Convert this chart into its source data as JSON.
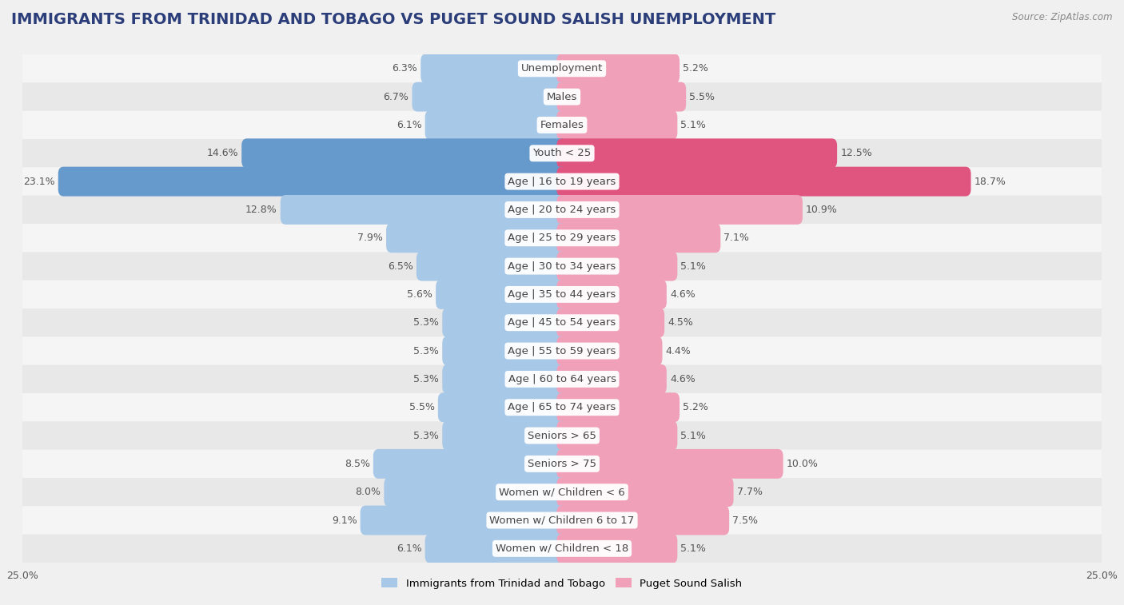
{
  "title": "IMMIGRANTS FROM TRINIDAD AND TOBAGO VS PUGET SOUND SALISH UNEMPLOYMENT",
  "source": "Source: ZipAtlas.com",
  "categories": [
    "Unemployment",
    "Males",
    "Females",
    "Youth < 25",
    "Age | 16 to 19 years",
    "Age | 20 to 24 years",
    "Age | 25 to 29 years",
    "Age | 30 to 34 years",
    "Age | 35 to 44 years",
    "Age | 45 to 54 years",
    "Age | 55 to 59 years",
    "Age | 60 to 64 years",
    "Age | 65 to 74 years",
    "Seniors > 65",
    "Seniors > 75",
    "Women w/ Children < 6",
    "Women w/ Children 6 to 17",
    "Women w/ Children < 18"
  ],
  "left_values": [
    6.3,
    6.7,
    6.1,
    14.6,
    23.1,
    12.8,
    7.9,
    6.5,
    5.6,
    5.3,
    5.3,
    5.3,
    5.5,
    5.3,
    8.5,
    8.0,
    9.1,
    6.1
  ],
  "right_values": [
    5.2,
    5.5,
    5.1,
    12.5,
    18.7,
    10.9,
    7.1,
    5.1,
    4.6,
    4.5,
    4.4,
    4.6,
    5.2,
    5.1,
    10.0,
    7.7,
    7.5,
    5.1
  ],
  "left_color_normal": "#a8c8e8",
  "right_color_normal": "#f0a0b8",
  "left_color_highlight": "#6699cc",
  "right_color_highlight": "#e05580",
  "highlight_rows": [
    3,
    4
  ],
  "bg_color": "#f0f0f0",
  "row_bg_even": "#f5f5f5",
  "row_bg_odd": "#e8e8e8",
  "axis_limit": 25.0,
  "legend_left": "Immigrants from Trinidad and Tobago",
  "legend_right": "Puget Sound Salish",
  "title_color": "#2c3e7a",
  "source_color": "#888888",
  "label_color": "#555555",
  "value_color": "#555555",
  "title_fontsize": 14,
  "label_fontsize": 9.5,
  "value_fontsize": 9,
  "tick_fontsize": 9
}
